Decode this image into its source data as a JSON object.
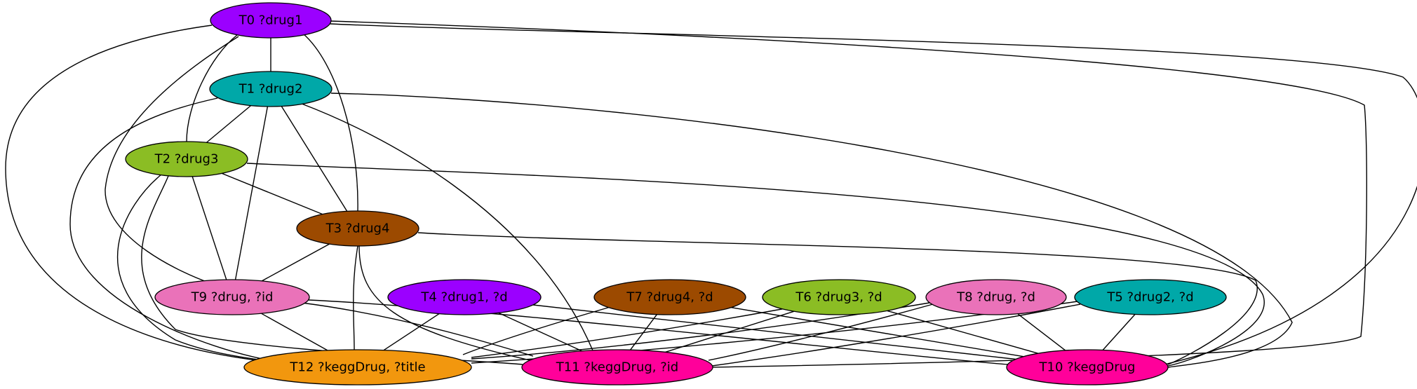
{
  "graph": {
    "nodes": [
      {
        "id": "T0",
        "label": "T0 ?drug1",
        "color": "#9b00ff"
      },
      {
        "id": "T1",
        "label": "T1 ?drug2",
        "color": "#00a8a8"
      },
      {
        "id": "T2",
        "label": "T2 ?drug3",
        "color": "#8bbd24"
      },
      {
        "id": "T3",
        "label": "T3 ?drug4",
        "color": "#9c4a00"
      },
      {
        "id": "T4",
        "label": "T4 ?drug1, ?d",
        "color": "#9b00ff"
      },
      {
        "id": "T5",
        "label": "T5 ?drug2, ?d",
        "color": "#00a8a8"
      },
      {
        "id": "T6",
        "label": "T6 ?drug3, ?d",
        "color": "#8bbd24"
      },
      {
        "id": "T7",
        "label": "T7 ?drug4, ?d",
        "color": "#9c4a00"
      },
      {
        "id": "T8",
        "label": "T8 ?drug, ?d",
        "color": "#ea72b9"
      },
      {
        "id": "T9",
        "label": "T9 ?drug, ?id",
        "color": "#ea72b9"
      },
      {
        "id": "T10",
        "label": "T10 ?keggDrug",
        "color": "#ff009a"
      },
      {
        "id": "T11",
        "label": "T11 ?keggDrug, ?id",
        "color": "#ff009a"
      },
      {
        "id": "T12",
        "label": "T12 ?keggDrug, ?title",
        "color": "#f2970e"
      }
    ],
    "edges": [
      [
        "T0",
        "T1"
      ],
      [
        "T0",
        "T2"
      ],
      [
        "T0",
        "T3"
      ],
      [
        "T0",
        "T9"
      ],
      [
        "T0",
        "T10"
      ],
      [
        "T0",
        "T11"
      ],
      [
        "T0",
        "T12"
      ],
      [
        "T1",
        "T2"
      ],
      [
        "T1",
        "T3"
      ],
      [
        "T1",
        "T9"
      ],
      [
        "T1",
        "T10"
      ],
      [
        "T1",
        "T11"
      ],
      [
        "T1",
        "T12"
      ],
      [
        "T2",
        "T3"
      ],
      [
        "T2",
        "T9"
      ],
      [
        "T2",
        "T10"
      ],
      [
        "T2",
        "T11"
      ],
      [
        "T2",
        "T12"
      ],
      [
        "T3",
        "T9"
      ],
      [
        "T3",
        "T10"
      ],
      [
        "T3",
        "T11"
      ],
      [
        "T3",
        "T12"
      ],
      [
        "T4",
        "T11"
      ],
      [
        "T4",
        "T12"
      ],
      [
        "T4",
        "T10"
      ],
      [
        "T5",
        "T10"
      ],
      [
        "T5",
        "T11"
      ],
      [
        "T5",
        "T12"
      ],
      [
        "T6",
        "T10"
      ],
      [
        "T6",
        "T11"
      ],
      [
        "T6",
        "T12"
      ],
      [
        "T7",
        "T10"
      ],
      [
        "T7",
        "T11"
      ],
      [
        "T7",
        "T12"
      ],
      [
        "T8",
        "T10"
      ],
      [
        "T8",
        "T11"
      ],
      [
        "T8",
        "T12"
      ],
      [
        "T9",
        "T10"
      ],
      [
        "T9",
        "T11"
      ],
      [
        "T9",
        "T12"
      ]
    ]
  }
}
